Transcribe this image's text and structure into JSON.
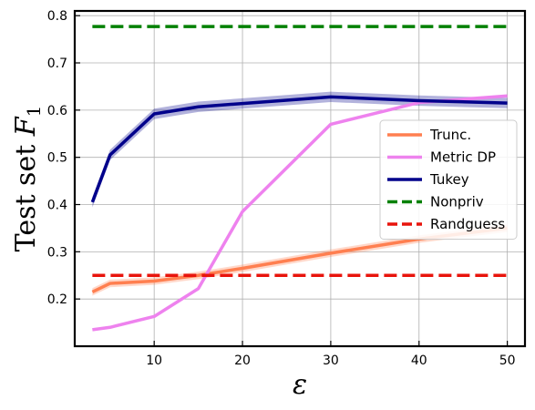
{
  "chart_data": {
    "type": "line",
    "xlabel": "ε",
    "ylabel_text": "Test set ",
    "ylabel_var": "F",
    "ylabel_sub": "1",
    "xlim": [
      1,
      52
    ],
    "ylim": [
      0.1,
      0.81
    ],
    "grid": true,
    "legend_position": "center-right",
    "xticks": [
      10,
      20,
      30,
      40,
      50
    ],
    "xtick_labels": [
      "10",
      "20",
      "30",
      "40",
      "50"
    ],
    "yticks": [
      0.2,
      0.3,
      0.4,
      0.5,
      0.6,
      0.7,
      0.8
    ],
    "ytick_labels": [
      "0.2",
      "0.3",
      "0.4",
      "0.5",
      "0.6",
      "0.7",
      "0.8"
    ],
    "series": [
      {
        "name": "Trunc.",
        "color": "#ff7f50",
        "style": "solid",
        "x": [
          3,
          5,
          10,
          15,
          20,
          30,
          40,
          50
        ],
        "y": [
          0.215,
          0.233,
          0.238,
          0.25,
          0.265,
          0.297,
          0.327,
          0.35
        ],
        "band": 0.008
      },
      {
        "name": "Metric DP",
        "color": "#ee82ee",
        "style": "solid",
        "x": [
          3,
          5,
          10,
          15,
          20,
          30,
          40,
          50
        ],
        "y": [
          0.135,
          0.14,
          0.163,
          0.222,
          0.385,
          0.57,
          0.616,
          0.63
        ],
        "band": 0
      },
      {
        "name": "Tukey",
        "color": "#00008b",
        "style": "solid",
        "x": [
          3,
          5,
          10,
          15,
          20,
          30,
          40,
          50
        ],
        "y": [
          0.405,
          0.505,
          0.592,
          0.607,
          0.614,
          0.628,
          0.62,
          0.615
        ],
        "band": 0.011
      },
      {
        "name": "Nonpriv",
        "color": "#008000",
        "style": "dashed",
        "x": [
          3,
          50
        ],
        "y": [
          0.777,
          0.777
        ],
        "band": 0
      },
      {
        "name": "Randguess",
        "color": "#e8140c",
        "style": "dashed",
        "x": [
          3,
          50
        ],
        "y": [
          0.25,
          0.25
        ],
        "band": 0
      }
    ]
  }
}
